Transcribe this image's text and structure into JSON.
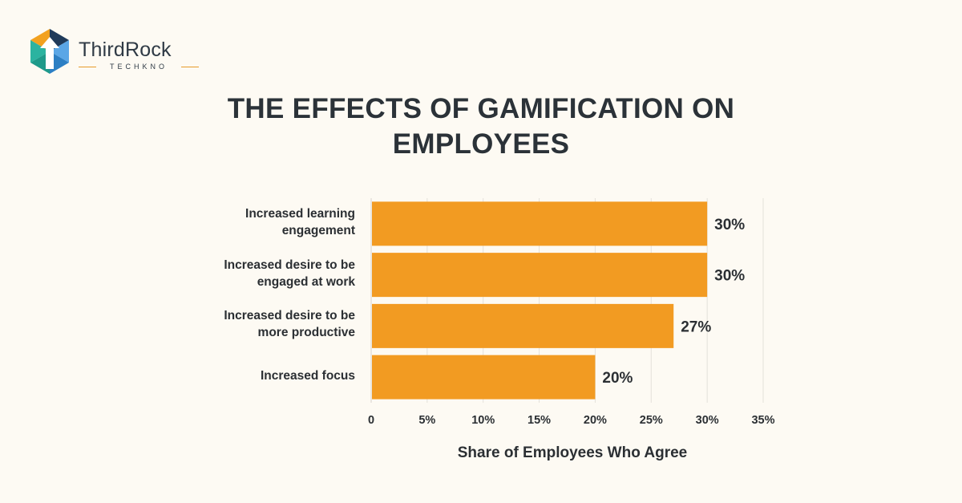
{
  "brand": {
    "name": "ThirdRock",
    "tagline": "TECHKNO",
    "colors": [
      "#f2a11f",
      "#1f3a5a",
      "#2bb3a0",
      "#3a8fd6"
    ]
  },
  "chart_data": {
    "type": "bar",
    "orientation": "horizontal",
    "title_lines": [
      "THE EFFECTS OF GAMIFICATION ON",
      "EMPLOYEES"
    ],
    "categories": [
      [
        "Increased learning",
        "engagement"
      ],
      [
        "Increased desire to be",
        "engaged at work"
      ],
      [
        "Increased desire to be",
        "more productive"
      ],
      [
        "Increased focus"
      ]
    ],
    "values": [
      30,
      30,
      27,
      20
    ],
    "value_labels": [
      "30%",
      "30%",
      "27%",
      "20%"
    ],
    "xlabel": "Share of Employees Who Agree",
    "xlim": [
      0,
      35
    ],
    "xticks": [
      0,
      5,
      10,
      15,
      20,
      25,
      30,
      35
    ],
    "xtick_labels": [
      "0",
      "5%",
      "10%",
      "15%",
      "20%",
      "25%",
      "30%",
      "35%"
    ],
    "bar_color": "#f29b22",
    "grid": true
  }
}
